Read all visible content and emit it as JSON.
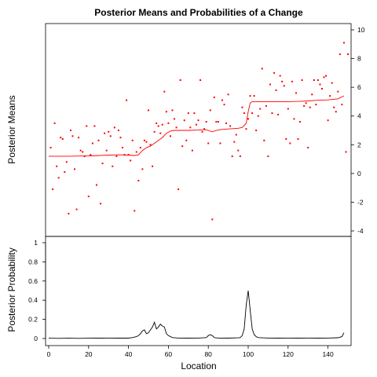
{
  "chart_data": [
    {
      "type": "scatter",
      "title": "Posterior Means and Probabilities of a Change",
      "ylabel": "Posterior Means",
      "ylim": [
        -4,
        10
      ],
      "xlim": [
        0,
        150
      ],
      "y_ticks": [
        -4,
        -2,
        0,
        2,
        4,
        6,
        8,
        10
      ],
      "y_axis_side": "right",
      "point_color": "#ff0000",
      "line_color": "#ff0000",
      "series": [
        {
          "kind": "points",
          "x": [
            1,
            2,
            3,
            4,
            5,
            6,
            7,
            8,
            9,
            10,
            11,
            12,
            13,
            14,
            15,
            16,
            17,
            18,
            19,
            20,
            21,
            22,
            23,
            24,
            25,
            26,
            27,
            28,
            29,
            30,
            31,
            32,
            33,
            34,
            35,
            36,
            37,
            38,
            39,
            40,
            41,
            42,
            43,
            44,
            45,
            46,
            47,
            48,
            49,
            50,
            51,
            52,
            53,
            54,
            55,
            56,
            57,
            58,
            59,
            60,
            61,
            62,
            63,
            64,
            65,
            66,
            67,
            68,
            69,
            70,
            71,
            72,
            73,
            74,
            75,
            76,
            77,
            78,
            79,
            80,
            81,
            82,
            83,
            84,
            85,
            86,
            87,
            88,
            89,
            90,
            91,
            92,
            93,
            94,
            95,
            96,
            97,
            98,
            99,
            100,
            101,
            102,
            103,
            104,
            105,
            106,
            107,
            108,
            109,
            110,
            111,
            112,
            113,
            114,
            115,
            116,
            117,
            118,
            119,
            120,
            121,
            122,
            123,
            124,
            125,
            126,
            127,
            128,
            129,
            130,
            131,
            132,
            133,
            134,
            135,
            136,
            137,
            138,
            139,
            140,
            141,
            142,
            143,
            144,
            145,
            146,
            147,
            148,
            149,
            150
          ],
          "y": [
            1.8,
            -1.1,
            3.5,
            0.5,
            -0.3,
            2.5,
            2.4,
            0.1,
            0.8,
            -2.8,
            3,
            2.6,
            0.3,
            -2.5,
            2.5,
            1.6,
            1.5,
            1.2,
            3.3,
            -1.6,
            1.3,
            2.1,
            3.3,
            -0.8,
            2.3,
            -2.1,
            0.7,
            2.8,
            1.6,
            2.9,
            2.6,
            0.5,
            3.2,
            1.2,
            3,
            2.5,
            1.8,
            1.3,
            5.1,
            1.3,
            0.9,
            2.3,
            -2.6,
            1.5,
            -0.5,
            1.8,
            0.3,
            2.3,
            2.2,
            4.4,
            2,
            0.5,
            2.9,
            3.5,
            3.3,
            2.8,
            3.4,
            5.7,
            4.3,
            3.5,
            2.6,
            4.4,
            3.8,
            3.2,
            -1.1,
            6.5,
            1.9,
            3.7,
            2.3,
            4.2,
            3.2,
            1.6,
            4.2,
            3.4,
            3.7,
            6.5,
            2.9,
            3.1,
            3.6,
            2.1,
            4.4,
            -3.2,
            5.3,
            3.6,
            3.6,
            2.1,
            5.1,
            4.8,
            3.5,
            5.5,
            3.3,
            1.2,
            2.2,
            2.7,
            1.6,
            1.2,
            4.6,
            4.2,
            3.1,
            3.8,
            5.4,
            4.2,
            5.4,
            3,
            4,
            4.5,
            7.3,
            2.3,
            4.7,
            1.2,
            6.2,
            4.2,
            7,
            5.8,
            4.1,
            6.8,
            6.4,
            6.1,
            2.4,
            4.5,
            2.1,
            6.4,
            3.8,
            5.6,
            2.4,
            3.6,
            6.5,
            4.7,
            4.9,
            1.8,
            4.6,
            5.5,
            6.5,
            4.8,
            6.5,
            6.2,
            5.9,
            6.7,
            6.8,
            3.7,
            5.4,
            6.3,
            4.6,
            4.3,
            5.7,
            8.3,
            4.8,
            9.1,
            1.5,
            8.3
          ]
        },
        {
          "kind": "line",
          "x": [
            0,
            5,
            10,
            15,
            20,
            25,
            30,
            35,
            40,
            43,
            45,
            47,
            49,
            51,
            53,
            55,
            57,
            59,
            61,
            63,
            65,
            70,
            75,
            78,
            80,
            82,
            84,
            86,
            90,
            95,
            97,
            99,
            100,
            101,
            102,
            105,
            110,
            115,
            120,
            125,
            130,
            135,
            140,
            145,
            148
          ],
          "y": [
            1.2,
            1.2,
            1.2,
            1.21,
            1.22,
            1.25,
            1.28,
            1.3,
            1.28,
            1.25,
            1.3,
            1.6,
            1.8,
            1.9,
            2.1,
            2.3,
            2.5,
            2.8,
            2.95,
            3,
            3,
            3,
            3.02,
            3.05,
            3,
            2.9,
            3,
            3.05,
            3.1,
            3.15,
            3.2,
            3.5,
            4.3,
            4.9,
            5,
            5,
            5,
            5,
            5,
            5.02,
            5.05,
            5.1,
            5.12,
            5.2,
            5.4
          ]
        }
      ]
    },
    {
      "type": "line",
      "xlabel": "Location",
      "ylabel": "Posterior Probability",
      "xlim": [
        0,
        150
      ],
      "ylim": [
        0,
        1
      ],
      "x_ticks": [
        0,
        20,
        40,
        60,
        80,
        100,
        120,
        140
      ],
      "y_ticks": [
        "0",
        "0.2",
        "0.4",
        "0.6",
        "0.8",
        "1"
      ],
      "line_color": "#000000",
      "series": [
        {
          "x": [
            0,
            5,
            10,
            15,
            20,
            25,
            30,
            35,
            40,
            42,
            43,
            44,
            45,
            46,
            47,
            48,
            49,
            50,
            51,
            52,
            53,
            54,
            55,
            56,
            57,
            58,
            59,
            60,
            62,
            65,
            70,
            75,
            79,
            80,
            81,
            82,
            83,
            85,
            90,
            95,
            96,
            97,
            98,
            99,
            100,
            101,
            102,
            103,
            104,
            105,
            110,
            115,
            120,
            125,
            130,
            135,
            140,
            145,
            147,
            148
          ],
          "y": [
            0.003,
            0.002,
            0.003,
            0.002,
            0.003,
            0.004,
            0.003,
            0.005,
            0.004,
            0.01,
            0.015,
            0.02,
            0.03,
            0.05,
            0.08,
            0.09,
            0.05,
            0.06,
            0.09,
            0.12,
            0.17,
            0.1,
            0.12,
            0.15,
            0.13,
            0.12,
            0.05,
            0.03,
            0.01,
            0.005,
            0.004,
            0.005,
            0.01,
            0.03,
            0.04,
            0.03,
            0.01,
            0.005,
            0.004,
            0.007,
            0.01,
            0.03,
            0.1,
            0.35,
            0.5,
            0.3,
            0.1,
            0.04,
            0.02,
            0.01,
            0.005,
            0.004,
            0.005,
            0.004,
            0.005,
            0.004,
            0.005,
            0.008,
            0.02,
            0.06
          ]
        }
      ]
    }
  ]
}
